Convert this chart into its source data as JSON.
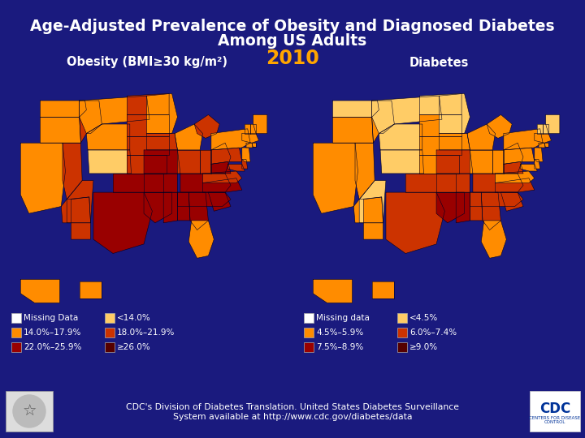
{
  "bg_color": "#1a1a7e",
  "title_line1": "Age-Adjusted Prevalence of Obesity and Diagnosed Diabetes",
  "title_line2": "Among US Adults",
  "year": "2010",
  "title_color": "#ffffff",
  "year_color": "#ffa500",
  "map_left_label": "Obesity (BMI≥30 kg/m²)",
  "map_right_label": "Diabetes",
  "map_label_color": "#ffffff",
  "obesity_colors": {
    "AL": "#990000",
    "AK": "#ff8c00",
    "AZ": "#cc3300",
    "AR": "#990000",
    "CA": "#ff8c00",
    "CO": "#ffcc66",
    "CT": "#ff8c00",
    "DE": "#cc3300",
    "FL": "#ff8c00",
    "GA": "#990000",
    "HI": "#ff8c00",
    "ID": "#cc3300",
    "IL": "#cc3300",
    "IN": "#cc3300",
    "IA": "#cc3300",
    "KS": "#cc3300",
    "KY": "#990000",
    "LA": "#990000",
    "ME": "#ff8c00",
    "MD": "#cc3300",
    "MA": "#ff8c00",
    "MI": "#cc3300",
    "MN": "#ff8c00",
    "MS": "#990000",
    "MO": "#990000",
    "MT": "#ff8c00",
    "NE": "#cc3300",
    "NV": "#cc3300",
    "NH": "#ff8c00",
    "NJ": "#ff8c00",
    "NM": "#cc3300",
    "NY": "#ff8c00",
    "NC": "#990000",
    "ND": "#cc3300",
    "OH": "#cc3300",
    "OK": "#990000",
    "OR": "#ff8c00",
    "PA": "#cc3300",
    "RI": "#ff8c00",
    "SC": "#990000",
    "SD": "#cc3300",
    "TN": "#990000",
    "TX": "#990000",
    "UT": "#cc3300",
    "VT": "#ff8c00",
    "VA": "#cc3300",
    "WA": "#ff8c00",
    "WV": "#990000",
    "WI": "#ff8c00",
    "WY": "#ff8c00"
  },
  "diabetes_colors": {
    "AL": "#cc3300",
    "AK": "#ff8c00",
    "AZ": "#ff8c00",
    "AR": "#cc3300",
    "CA": "#ff8c00",
    "CO": "#ffcc66",
    "CT": "#ff8c00",
    "DE": "#ff8c00",
    "FL": "#ff8c00",
    "GA": "#cc3300",
    "HI": "#ff8c00",
    "ID": "#ff8c00",
    "IL": "#ff8c00",
    "IN": "#ff8c00",
    "IA": "#ff8c00",
    "KS": "#ff8c00",
    "KY": "#cc3300",
    "LA": "#990000",
    "ME": "#ffcc66",
    "MD": "#ff8c00",
    "MA": "#ff8c00",
    "MI": "#ff8c00",
    "MN": "#ffcc66",
    "MS": "#990000",
    "MO": "#cc3300",
    "MT": "#ffcc66",
    "NE": "#ff8c00",
    "NV": "#ff8c00",
    "NH": "#ffcc66",
    "NJ": "#ff8c00",
    "NM": "#ff8c00",
    "NY": "#ff8c00",
    "NC": "#cc3300",
    "ND": "#ffcc66",
    "OH": "#ff8c00",
    "OK": "#cc3300",
    "OR": "#ff8c00",
    "PA": "#ff8c00",
    "RI": "#ff8c00",
    "SC": "#cc3300",
    "SD": "#ff8c00",
    "TN": "#cc3300",
    "TX": "#cc3300",
    "UT": "#ffcc66",
    "VT": "#ffcc66",
    "VA": "#ff8c00",
    "WA": "#ffcc66",
    "WV": "#cc3300",
    "WI": "#ff8c00",
    "WY": "#ffcc66"
  },
  "obesity_legend_colors": [
    "#ffffff",
    "#ff8c00",
    "#990000",
    "#ffcc66",
    "#cc3300",
    "#550000"
  ],
  "obesity_legend_labels": [
    "Missing Data",
    "14.0%–17.9%",
    "22.0%–25.9%",
    "<14.0%",
    "18.0%–21.9%",
    "≥26.0%"
  ],
  "diabetes_legend_colors": [
    "#ffffff",
    "#ff8c00",
    "#990000",
    "#ffcc66",
    "#cc3300",
    "#550000"
  ],
  "diabetes_legend_labels": [
    "Missing data",
    "4.5%–5.9%",
    "7.5%–8.9%",
    "<4.5%",
    "6.0%–7.4%",
    "≥9.0%"
  ],
  "footer_text": "CDC's Division of Diabetes Translation. United States Diabetes Surveillance\nSystem available at http://www.cdc.gov/diabetes/data",
  "footer_color": "#ffffff"
}
